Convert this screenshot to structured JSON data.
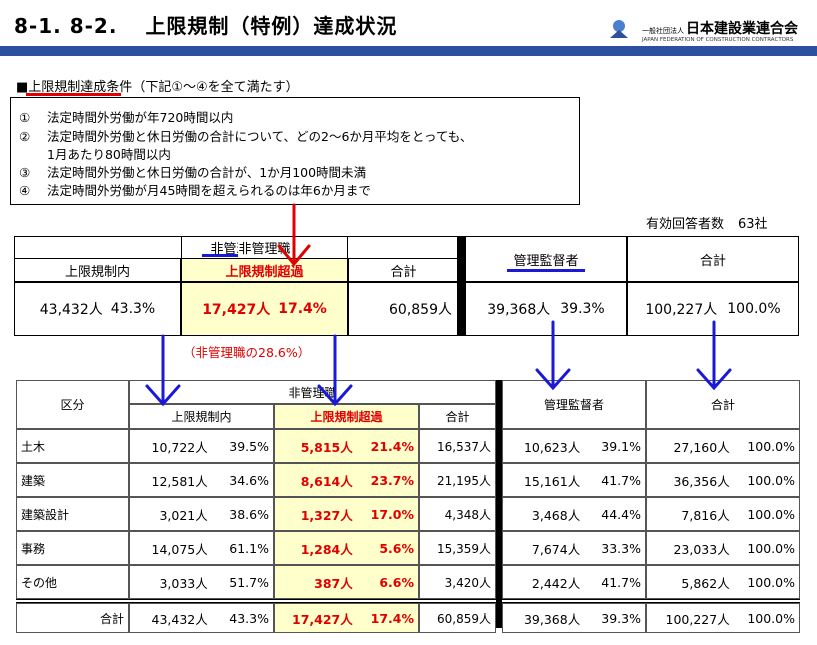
{
  "header": {
    "section": "8-1. 8-2.",
    "title": "上限規制（特例）達成状況",
    "logo_small": "一般社団法人",
    "logo_org": "日本建設業連合会",
    "logo_en": "JAPAN FEDERATION OF CONSTRUCTION CONTRACTORS"
  },
  "conditions": {
    "heading_bullet": "■",
    "heading_main": "上限規制達成条件",
    "heading_sub": "（下記①～④を全て満たす）",
    "items": [
      {
        "num": "①",
        "text": "法定時間外労働が年720時間以内"
      },
      {
        "num": "②",
        "text": "法定時間外労働と休日労働の合計について、どの2～6か月平均をとっても、"
      },
      {
        "num": "",
        "text": "1月あたり80時間以内"
      },
      {
        "num": "③",
        "text": "法定時間外労働と休日労働の合計が、1か月100時間未満"
      },
      {
        "num": "④",
        "text": "法定時間外労働が月45時間を超えられるのは年6か月まで"
      }
    ]
  },
  "respondents": {
    "label": "有効回答者数",
    "value": "63社"
  },
  "summary": {
    "non_manager": "非管理職",
    "within": "上限規制内",
    "exceed": "上限規制超過",
    "total": "合計",
    "manager": "管理監督者",
    "grand_total": "合計",
    "within_n": "43,432人",
    "within_p": "43.3%",
    "exceed_n": "17,427人",
    "exceed_p": "17.4%",
    "nm_total": "60,859人",
    "mgr_n": "39,368人",
    "mgr_p": "39.3%",
    "all_n": "100,227人",
    "all_p": "100.0%",
    "note": "（非管理職の28.6%）"
  },
  "detail": {
    "col_category": "区分",
    "col_non_manager": "非管理職",
    "col_within": "上限規制内",
    "col_exceed": "上限規制超過",
    "col_total": "合計",
    "col_manager": "管理監督者",
    "col_grand": "合計",
    "rows": [
      {
        "cat": "土木",
        "wn": "10,722人",
        "wp": "39.5%",
        "en": "5,815人",
        "ep": "21.4%",
        "t": "16,537人",
        "mn": "10,623人",
        "mp": "39.1%",
        "gn": "27,160人",
        "gp": "100.0%"
      },
      {
        "cat": "建築",
        "wn": "12,581人",
        "wp": "34.6%",
        "en": "8,614人",
        "ep": "23.7%",
        "t": "21,195人",
        "mn": "15,161人",
        "mp": "41.7%",
        "gn": "36,356人",
        "gp": "100.0%"
      },
      {
        "cat": "建築設計",
        "wn": "3,021人",
        "wp": "38.6%",
        "en": "1,327人",
        "ep": "17.0%",
        "t": "4,348人",
        "mn": "3,468人",
        "mp": "44.4%",
        "gn": "7,816人",
        "gp": "100.0%"
      },
      {
        "cat": "事務",
        "wn": "14,075人",
        "wp": "61.1%",
        "en": "1,284人",
        "ep": "5.6%",
        "t": "15,359人",
        "mn": "7,674人",
        "mp": "33.3%",
        "gn": "23,033人",
        "gp": "100.0%"
      },
      {
        "cat": "その他",
        "wn": "3,033人",
        "wp": "51.7%",
        "en": "387人",
        "ep": "6.6%",
        "t": "3,420人",
        "mn": "2,442人",
        "mp": "41.7%",
        "gn": "5,862人",
        "gp": "100.0%"
      }
    ],
    "total_row": {
      "cat": "合計",
      "wn": "43,432人",
      "wp": "43.3%",
      "en": "17,427人",
      "ep": "17.4%",
      "t": "60,859人",
      "mn": "39,368人",
      "mp": "39.3%",
      "gn": "100,227人",
      "gp": "100.0%"
    }
  },
  "colors": {
    "accent_blue": "#2c4fa0",
    "arrow_blue": "#1a1ad6",
    "alert_red": "#e00000",
    "highlight": "#ffffcc"
  }
}
